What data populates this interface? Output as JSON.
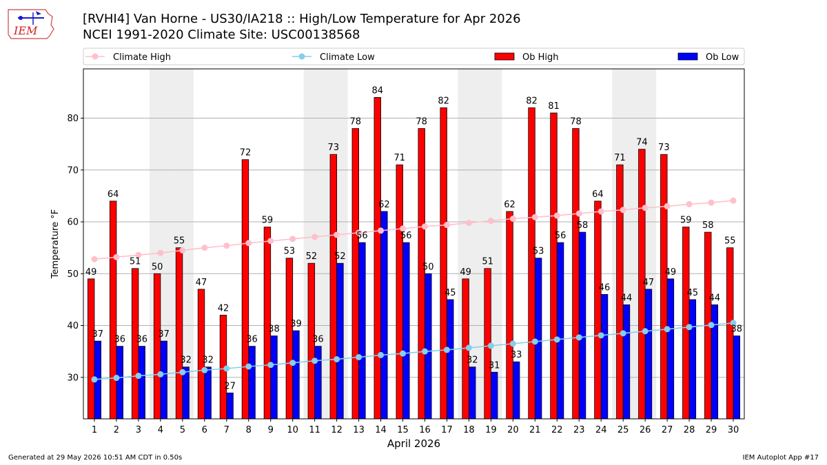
{
  "title_line1": "[RVHI4] Van Horne - US30/IA218 :: High/Low Temperature for Apr 2026",
  "title_line2": "NCEI 1991-2020 Climate Site: USC00138568",
  "footer_left": "Generated at 29 May 2026 10:51 AM CDT in 0.50s",
  "footer_right": "IEM Autoplot App #17",
  "logo_text": "IEM",
  "chart_data": {
    "type": "bar",
    "xlabel": "April 2026",
    "ylabel": "Temperature °F",
    "ylim": [
      22,
      89.5
    ],
    "yticks": [
      30,
      40,
      50,
      60,
      70,
      80
    ],
    "grid": true,
    "legend_placement": "top",
    "weekend_shading_days": [
      4,
      5,
      11,
      12,
      18,
      19,
      25,
      26
    ],
    "categories": [
      "1",
      "2",
      "3",
      "4",
      "5",
      "6",
      "7",
      "8",
      "9",
      "10",
      "11",
      "12",
      "13",
      "14",
      "15",
      "16",
      "17",
      "18",
      "19",
      "20",
      "21",
      "22",
      "23",
      "24",
      "25",
      "26",
      "27",
      "28",
      "29",
      "30"
    ],
    "series": [
      {
        "name": "Climate High",
        "kind": "line",
        "color": "#ffc0cb",
        "values": [
          52.8,
          53.2,
          53.6,
          54.0,
          54.5,
          55.0,
          55.4,
          55.9,
          56.3,
          56.7,
          57.1,
          57.5,
          57.9,
          58.3,
          58.7,
          59.1,
          59.4,
          59.8,
          60.2,
          60.6,
          60.9,
          61.2,
          61.6,
          62.0,
          62.3,
          62.7,
          63.0,
          63.4,
          63.7,
          64.1
        ]
      },
      {
        "name": "Climate Low",
        "kind": "line",
        "color": "#87ceeb",
        "values": [
          29.6,
          29.9,
          30.3,
          30.6,
          31.0,
          31.4,
          31.7,
          32.1,
          32.4,
          32.8,
          33.2,
          33.5,
          33.9,
          34.3,
          34.6,
          35.0,
          35.3,
          35.7,
          36.1,
          36.5,
          36.9,
          37.3,
          37.7,
          38.1,
          38.5,
          38.9,
          39.3,
          39.7,
          40.1,
          40.5
        ]
      },
      {
        "name": "Ob High",
        "kind": "bar",
        "color": "#ff0000",
        "values": [
          49,
          64,
          51,
          50,
          55,
          47,
          42,
          72,
          59,
          53,
          52,
          73,
          78,
          84,
          71,
          78,
          82,
          49,
          51,
          62,
          82,
          81,
          78,
          64,
          71,
          74,
          73,
          59,
          58,
          55
        ]
      },
      {
        "name": "Ob Low",
        "kind": "bar",
        "color": "#0000ff",
        "values": [
          37,
          36,
          36,
          37,
          32,
          32,
          27,
          36,
          38,
          39,
          36,
          52,
          56,
          62,
          56,
          50,
          45,
          32,
          31,
          33,
          53,
          56,
          58,
          46,
          44,
          47,
          49,
          45,
          44,
          38
        ]
      }
    ]
  }
}
